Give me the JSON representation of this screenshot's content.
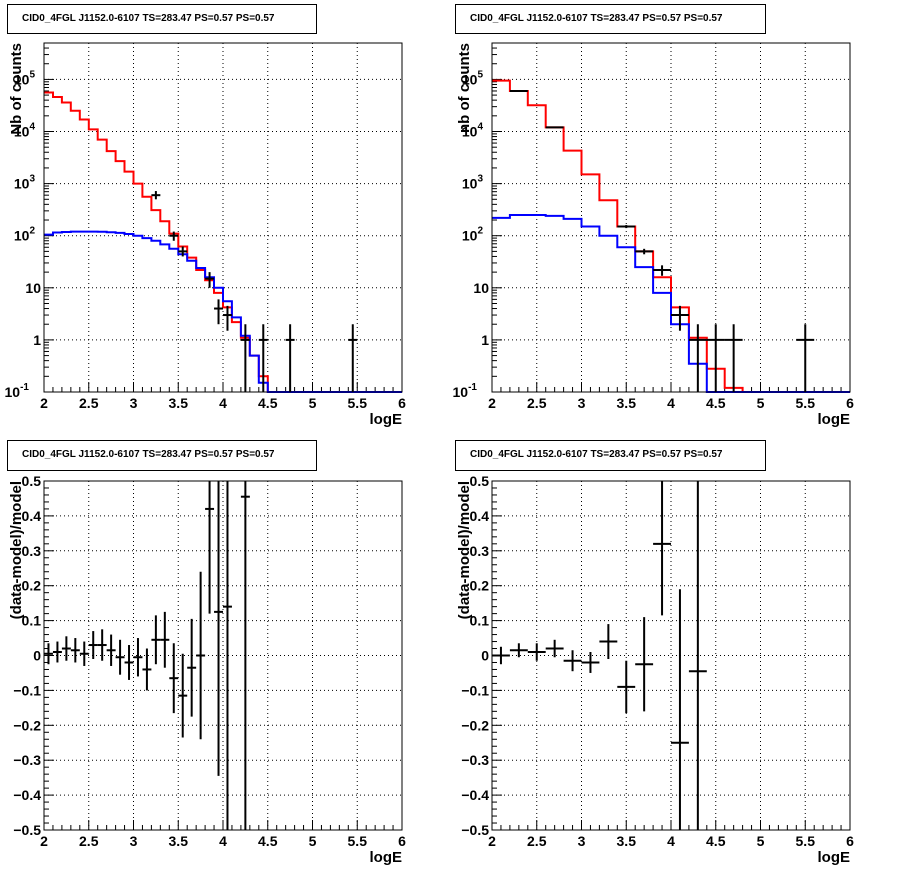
{
  "colors": {
    "data": "#000000",
    "total_model": "#ff0000",
    "component": "#0000ff",
    "grid": "#000000"
  },
  "chart_data": [
    {
      "type": "histogram",
      "panel": "top-left",
      "title": "CID0_4FGL J1152.0-6107 TS=283.47 PS=0.57 PS=0.57",
      "xlabel": "logE",
      "ylabel": "Nb of counts",
      "xscale": "linear",
      "yscale": "log",
      "xlim": [
        2,
        6
      ],
      "ylim": [
        0.1,
        500000
      ],
      "xticks": [
        "2",
        "2.5",
        "3",
        "3.5",
        "4",
        "4.5",
        "5",
        "5.5",
        "6"
      ],
      "yticks": [
        {
          "value": 0.1,
          "label": "10",
          "sup": "-1"
        },
        {
          "value": 1,
          "label": "1",
          "sup": ""
        },
        {
          "value": 10,
          "label": "10",
          "sup": ""
        },
        {
          "value": 100,
          "label": "10",
          "sup": "2"
        },
        {
          "value": 1000,
          "label": "10",
          "sup": "3"
        },
        {
          "value": 10000,
          "label": "10",
          "sup": "4"
        },
        {
          "value": 100000,
          "label": "10",
          "sup": "5"
        }
      ],
      "grid": true,
      "bin_edges": [
        2.0,
        2.1,
        2.2,
        2.3,
        2.4,
        2.5,
        2.6,
        2.7,
        2.8,
        2.9,
        3.0,
        3.1,
        3.2,
        3.3,
        3.4,
        3.5,
        3.6,
        3.7,
        3.8,
        3.9,
        4.0,
        4.1,
        4.2,
        4.3,
        4.4,
        4.5,
        4.6,
        4.7,
        4.8,
        4.9,
        5.0,
        5.1,
        5.2,
        5.3,
        5.4,
        5.5,
        5.6,
        5.7,
        5.8,
        5.9,
        6.0
      ],
      "series": [
        {
          "role": "total_model",
          "values": [
            56000,
            46000,
            36000,
            25000,
            17000,
            11000,
            7000,
            4200,
            2700,
            1700,
            1000,
            560,
            310,
            190,
            110,
            62,
            38,
            22,
            14,
            8,
            4.2,
            2.2,
            1.1,
            0.5,
            0.2,
            0.1,
            0.1,
            0.1,
            0.1,
            0.1,
            0.1,
            0.1,
            0.1,
            0.1,
            0.1,
            0.1,
            0.1,
            0.1,
            0.1,
            0.1
          ]
        },
        {
          "role": "component",
          "values": [
            105,
            115,
            118,
            120,
            120,
            120,
            119,
            117,
            113,
            108,
            100,
            90,
            80,
            68,
            56,
            44,
            33,
            24,
            16,
            10,
            5.5,
            2.7,
            1.2,
            0.5,
            0.15,
            0.1,
            0.1,
            0.1,
            0.1,
            0.1,
            0.1,
            0.1,
            0.1,
            0.1,
            0.1,
            0.1,
            0.1,
            0.1,
            0.1,
            0.1
          ]
        },
        {
          "role": "data",
          "points": [
            {
              "x": 3.25,
              "y": 600,
              "lo": 500,
              "hi": 720
            },
            {
              "x": 3.45,
              "y": 100,
              "lo": 80,
              "hi": 120
            },
            {
              "x": 3.55,
              "y": 50,
              "lo": 40,
              "hi": 62
            },
            {
              "x": 3.85,
              "y": 15,
              "lo": 10,
              "hi": 20
            },
            {
              "x": 3.95,
              "y": 4,
              "lo": 2,
              "hi": 6
            },
            {
              "x": 4.05,
              "y": 3,
              "lo": 1.5,
              "hi": 4.5
            },
            {
              "x": 4.25,
              "y": 1,
              "lo": 0.1,
              "hi": 2
            },
            {
              "x": 4.45,
              "y": 1,
              "lo": 0.1,
              "hi": 2
            },
            {
              "x": 4.75,
              "y": 1,
              "lo": 0.1,
              "hi": 2
            },
            {
              "x": 5.45,
              "y": 1,
              "lo": 0.1,
              "hi": 2
            }
          ]
        }
      ]
    },
    {
      "type": "histogram",
      "panel": "top-right",
      "title": "CID0_4FGL J1152.0-6107 TS=283.47 PS=0.57 PS=0.57",
      "xlabel": "logE",
      "ylabel": "nb of counts",
      "xscale": "linear",
      "yscale": "log",
      "xlim": [
        2,
        6
      ],
      "ylim": [
        0.1,
        500000
      ],
      "xticks": [
        "2",
        "2.5",
        "3",
        "3.5",
        "4",
        "4.5",
        "5",
        "5.5",
        "6"
      ],
      "yticks": [
        {
          "value": 0.1,
          "label": "10",
          "sup": "-1"
        },
        {
          "value": 1,
          "label": "1",
          "sup": ""
        },
        {
          "value": 10,
          "label": "10",
          "sup": ""
        },
        {
          "value": 100,
          "label": "10",
          "sup": "2"
        },
        {
          "value": 1000,
          "label": "10",
          "sup": "3"
        },
        {
          "value": 10000,
          "label": "10",
          "sup": "4"
        },
        {
          "value": 100000,
          "label": "10",
          "sup": "5"
        }
      ],
      "grid": true,
      "bin_edges": [
        2.0,
        2.2,
        2.4,
        2.6,
        2.8,
        3.0,
        3.2,
        3.4,
        3.6,
        3.8,
        4.0,
        4.2,
        4.4,
        4.6,
        4.8,
        5.0,
        5.2,
        5.4,
        5.6,
        5.8,
        6.0
      ],
      "series": [
        {
          "role": "total_model",
          "values": [
            95000,
            60000,
            32000,
            12000,
            4300,
            1500,
            480,
            150,
            50,
            16,
            4.2,
            1.1,
            0.28,
            0.12,
            0.1,
            0.1,
            0.1,
            0.1,
            0.1,
            0.1
          ]
        },
        {
          "role": "component",
          "values": [
            220,
            250,
            250,
            240,
            210,
            150,
            100,
            60,
            25,
            8,
            2,
            0.35,
            0.1,
            0.1,
            0.1,
            0.1,
            0.1,
            0.1,
            0.1,
            0.1
          ]
        },
        {
          "role": "data",
          "points": [
            {
              "x": 2.3,
              "y": 60000,
              "lo": 59000,
              "hi": 61000
            },
            {
              "x": 2.7,
              "y": 12000,
              "lo": 11800,
              "hi": 12200
            },
            {
              "x": 3.5,
              "y": 150,
              "lo": 140,
              "hi": 160
            },
            {
              "x": 3.7,
              "y": 50,
              "lo": 44,
              "hi": 56
            },
            {
              "x": 3.9,
              "y": 22,
              "lo": 17,
              "hi": 27
            },
            {
              "x": 4.1,
              "y": 3,
              "lo": 1.5,
              "hi": 4.5
            },
            {
              "x": 4.3,
              "y": 1,
              "lo": 0.1,
              "hi": 2
            },
            {
              "x": 4.5,
              "y": 1,
              "lo": 0.1,
              "hi": 2
            },
            {
              "x": 4.7,
              "y": 1,
              "lo": 0.1,
              "hi": 2
            },
            {
              "x": 5.5,
              "y": 1,
              "lo": 0.1,
              "hi": 2
            }
          ]
        }
      ]
    },
    {
      "type": "scatter",
      "panel": "bottom-left",
      "title": "CID0_4FGL J1152.0-6107 TS=283.47 PS=0.57 PS=0.57",
      "xlabel": "logE",
      "ylabel": "(data-model)/model",
      "xscale": "linear",
      "yscale": "linear",
      "xlim": [
        2,
        6
      ],
      "ylim": [
        -0.5,
        0.5
      ],
      "xticks": [
        "2",
        "2.5",
        "3",
        "3.5",
        "4",
        "4.5",
        "5",
        "5.5",
        "6"
      ],
      "yticks": [
        {
          "value": -0.5,
          "label": "−0.5"
        },
        {
          "value": -0.4,
          "label": "−0.4"
        },
        {
          "value": -0.3,
          "label": "−0.3"
        },
        {
          "value": -0.2,
          "label": "−0.2"
        },
        {
          "value": -0.1,
          "label": "−0.1"
        },
        {
          "value": 0,
          "label": "0"
        },
        {
          "value": 0.1,
          "label": "0.1"
        },
        {
          "value": 0.2,
          "label": "0.2"
        },
        {
          "value": 0.3,
          "label": "0.3"
        },
        {
          "value": 0.4,
          "label": "0.4"
        },
        {
          "value": 0.5,
          "label": "0.5"
        }
      ],
      "grid": true,
      "bin_width": 0.1,
      "series": [
        {
          "role": "data",
          "points": [
            {
              "x": 2.05,
              "y": 0.005,
              "err": 0.03
            },
            {
              "x": 2.15,
              "y": 0.01,
              "err": 0.03
            },
            {
              "x": 2.25,
              "y": 0.02,
              "err": 0.035
            },
            {
              "x": 2.35,
              "y": 0.015,
              "err": 0.035
            },
            {
              "x": 2.45,
              "y": 0.005,
              "err": 0.035
            },
            {
              "x": 2.55,
              "y": 0.03,
              "err": 0.04
            },
            {
              "x": 2.65,
              "y": 0.03,
              "err": 0.045
            },
            {
              "x": 2.75,
              "y": 0.015,
              "err": 0.045
            },
            {
              "x": 2.85,
              "y": -0.005,
              "err": 0.05
            },
            {
              "x": 2.95,
              "y": -0.02,
              "err": 0.05
            },
            {
              "x": 3.05,
              "y": -0.005,
              "err": 0.055
            },
            {
              "x": 3.15,
              "y": -0.04,
              "err": 0.06
            },
            {
              "x": 3.25,
              "y": 0.045,
              "err": 0.07
            },
            {
              "x": 3.35,
              "y": 0.045,
              "err": 0.08
            },
            {
              "x": 3.45,
              "y": -0.065,
              "err": 0.1
            },
            {
              "x": 3.55,
              "y": -0.115,
              "err": 0.12
            },
            {
              "x": 3.65,
              "y": -0.035,
              "err": 0.14
            },
            {
              "x": 3.75,
              "y": 0.0,
              "err": 0.24
            },
            {
              "x": 3.85,
              "y": 0.42,
              "err": 0.3
            },
            {
              "x": 3.95,
              "y": 0.125,
              "err": 0.47
            },
            {
              "x": 4.05,
              "y": 0.14,
              "err": 0.8
            },
            {
              "x": 4.25,
              "y": 0.455,
              "err": 1.2
            }
          ]
        }
      ]
    },
    {
      "type": "scatter",
      "panel": "bottom-right",
      "title": "CID0_4FGL J1152.0-6107 TS=283.47 PS=0.57 PS=0.57",
      "xlabel": "logE",
      "ylabel": "(data-model)/model",
      "xscale": "linear",
      "yscale": "linear",
      "xlim": [
        2,
        6
      ],
      "ylim": [
        -0.5,
        0.5
      ],
      "xticks": [
        "2",
        "2.5",
        "3",
        "3.5",
        "4",
        "4.5",
        "5",
        "5.5",
        "6"
      ],
      "yticks": [
        {
          "value": -0.5,
          "label": "−0.5"
        },
        {
          "value": -0.4,
          "label": "−0.4"
        },
        {
          "value": -0.3,
          "label": "−0.3"
        },
        {
          "value": -0.2,
          "label": "−0.2"
        },
        {
          "value": -0.1,
          "label": "−0.1"
        },
        {
          "value": 0,
          "label": "0"
        },
        {
          "value": 0.1,
          "label": "0.1"
        },
        {
          "value": 0.2,
          "label": "0.2"
        },
        {
          "value": 0.3,
          "label": "0.3"
        },
        {
          "value": 0.4,
          "label": "0.4"
        },
        {
          "value": 0.5,
          "label": "0.5"
        }
      ],
      "grid": true,
      "bin_width": 0.2,
      "series": [
        {
          "role": "data",
          "points": [
            {
              "x": 2.1,
              "y": 0.0,
              "err": 0.025
            },
            {
              "x": 2.3,
              "y": 0.015,
              "err": 0.02
            },
            {
              "x": 2.5,
              "y": 0.01,
              "err": 0.025
            },
            {
              "x": 2.7,
              "y": 0.02,
              "err": 0.025
            },
            {
              "x": 2.9,
              "y": -0.015,
              "err": 0.03
            },
            {
              "x": 3.1,
              "y": -0.02,
              "err": 0.03
            },
            {
              "x": 3.3,
              "y": 0.04,
              "err": 0.05
            },
            {
              "x": 3.5,
              "y": -0.09,
              "err": 0.075
            },
            {
              "x": 3.7,
              "y": -0.025,
              "err": 0.135
            },
            {
              "x": 3.9,
              "y": 0.32,
              "err": 0.205
            },
            {
              "x": 4.1,
              "y": -0.25,
              "err": 0.44
            },
            {
              "x": 4.3,
              "y": -0.045,
              "err": 0.9
            }
          ]
        }
      ]
    }
  ]
}
